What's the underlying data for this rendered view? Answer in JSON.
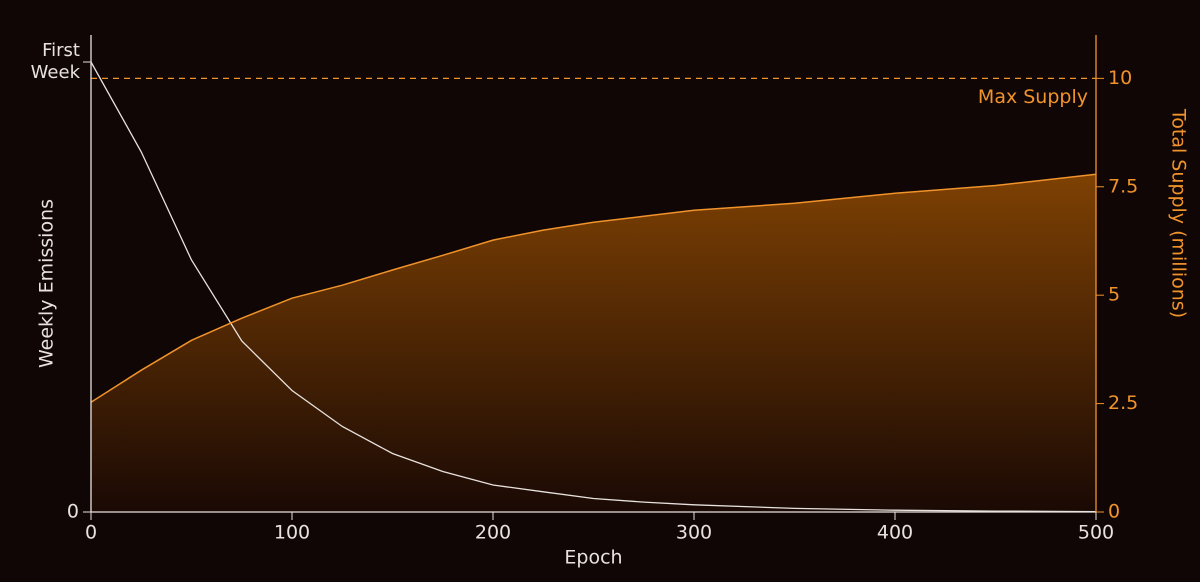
{
  "chart_data": {
    "type": "line",
    "xlabel": "Epoch",
    "ylabel": "Weekly Emissions",
    "y2label": "Total Supply (millions)",
    "x": [
      0,
      25,
      50,
      75,
      100,
      125,
      150,
      175,
      200,
      225,
      250,
      275,
      300,
      350,
      400,
      450,
      500
    ],
    "xlim": [
      0,
      500
    ],
    "xticks": [
      0,
      100,
      200,
      300,
      400,
      500
    ],
    "ylim": [
      0,
      1.06
    ],
    "yticks": [
      0,
      {
        "value": 1,
        "label": "First Week"
      }
    ],
    "y2lim": [
      0,
      11
    ],
    "y2ticks": [
      0,
      2.5,
      5,
      7.5,
      10
    ],
    "series": [
      {
        "color": "#e8e2de",
        "values": [
          1.0,
          0.8,
          0.56,
          0.38,
          0.27,
          0.19,
          0.13,
          0.09,
          0.06,
          0.045,
          0.03,
          0.022,
          0.016,
          0.008,
          0.004,
          0.002,
          0.001
        ]
      },
      {
        "color": "#f0932b",
        "axis": "y2",
        "fill": true,
        "values": [
          2.53,
          3.27,
          3.96,
          4.47,
          4.93,
          5.23,
          5.58,
          5.92,
          6.27,
          6.5,
          6.68,
          6.82,
          6.96,
          7.12,
          7.35,
          7.53,
          7.79
        ]
      }
    ],
    "annotations": [
      {
        "text": "Max Supply",
        "value": 10,
        "axis": "y2",
        "color": "#f0932b"
      }
    ]
  }
}
